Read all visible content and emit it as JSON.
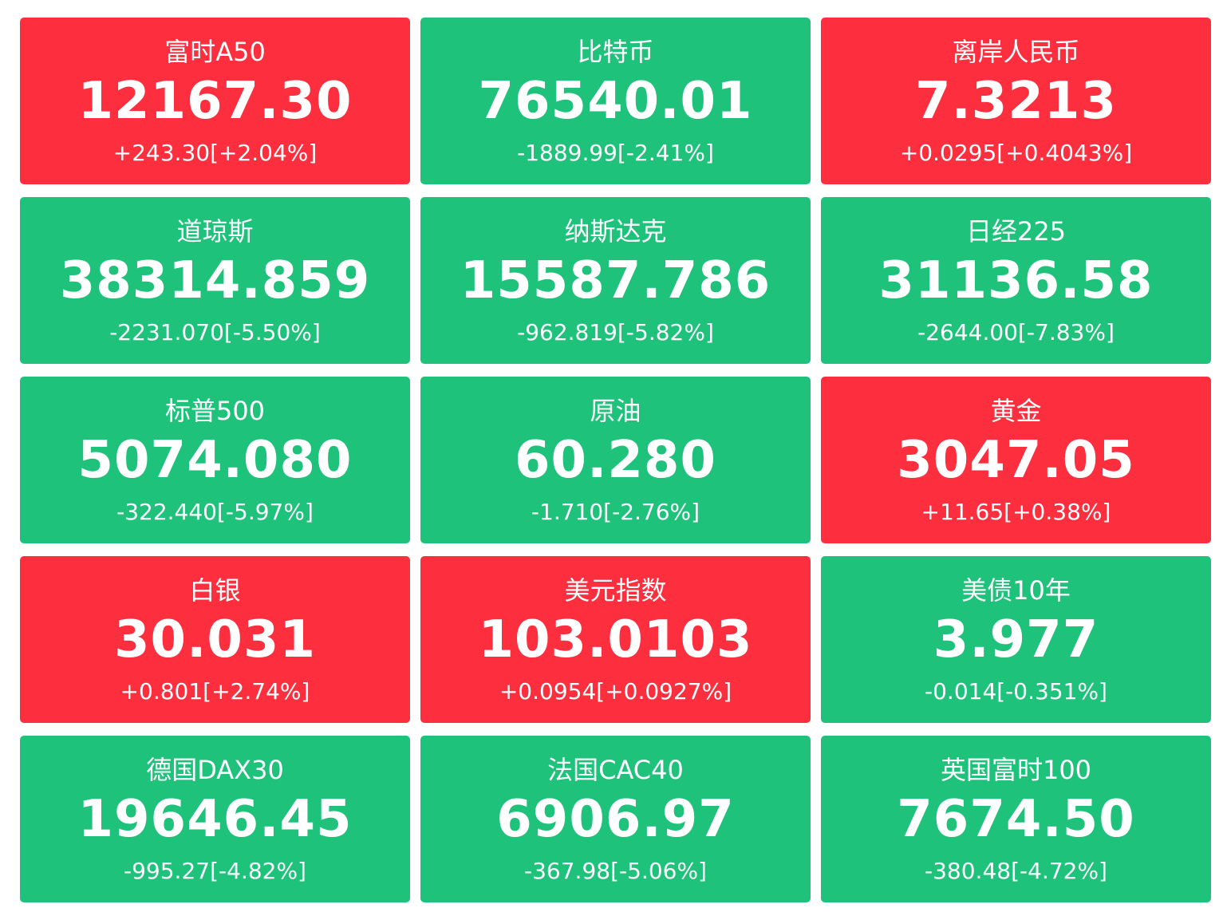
{
  "colors": {
    "up": "#fd2e3e",
    "down": "#1ec27b",
    "text": "#ffffff"
  },
  "cards": [
    {
      "name": "富时A50",
      "price": "12167.30",
      "change": "+243.30[+2.04%]",
      "trend": "up"
    },
    {
      "name": "比特币",
      "price": "76540.01",
      "change": "-1889.99[-2.41%]",
      "trend": "down"
    },
    {
      "name": "离岸人民币",
      "price": "7.3213",
      "change": "+0.0295[+0.4043%]",
      "trend": "up"
    },
    {
      "name": "道琼斯",
      "price": "38314.859",
      "change": "-2231.070[-5.50%]",
      "trend": "down"
    },
    {
      "name": "纳斯达克",
      "price": "15587.786",
      "change": "-962.819[-5.82%]",
      "trend": "down"
    },
    {
      "name": "日经225",
      "price": "31136.58",
      "change": "-2644.00[-7.83%]",
      "trend": "down"
    },
    {
      "name": "标普500",
      "price": "5074.080",
      "change": "-322.440[-5.97%]",
      "trend": "down"
    },
    {
      "name": "原油",
      "price": "60.280",
      "change": "-1.710[-2.76%]",
      "trend": "down"
    },
    {
      "name": "黄金",
      "price": "3047.05",
      "change": "+11.65[+0.38%]",
      "trend": "up"
    },
    {
      "name": "白银",
      "price": "30.031",
      "change": "+0.801[+2.74%]",
      "trend": "up"
    },
    {
      "name": "美元指数",
      "price": "103.0103",
      "change": "+0.0954[+0.0927%]",
      "trend": "up"
    },
    {
      "name": "美债10年",
      "price": "3.977",
      "change": "-0.014[-0.351%]",
      "trend": "down"
    },
    {
      "name": "德国DAX30",
      "price": "19646.45",
      "change": "-995.27[-4.82%]",
      "trend": "down"
    },
    {
      "name": "法国CAC40",
      "price": "6906.97",
      "change": "-367.98[-5.06%]",
      "trend": "down"
    },
    {
      "name": "英国富时100",
      "price": "7674.50",
      "change": "-380.48[-4.72%]",
      "trend": "down"
    }
  ]
}
